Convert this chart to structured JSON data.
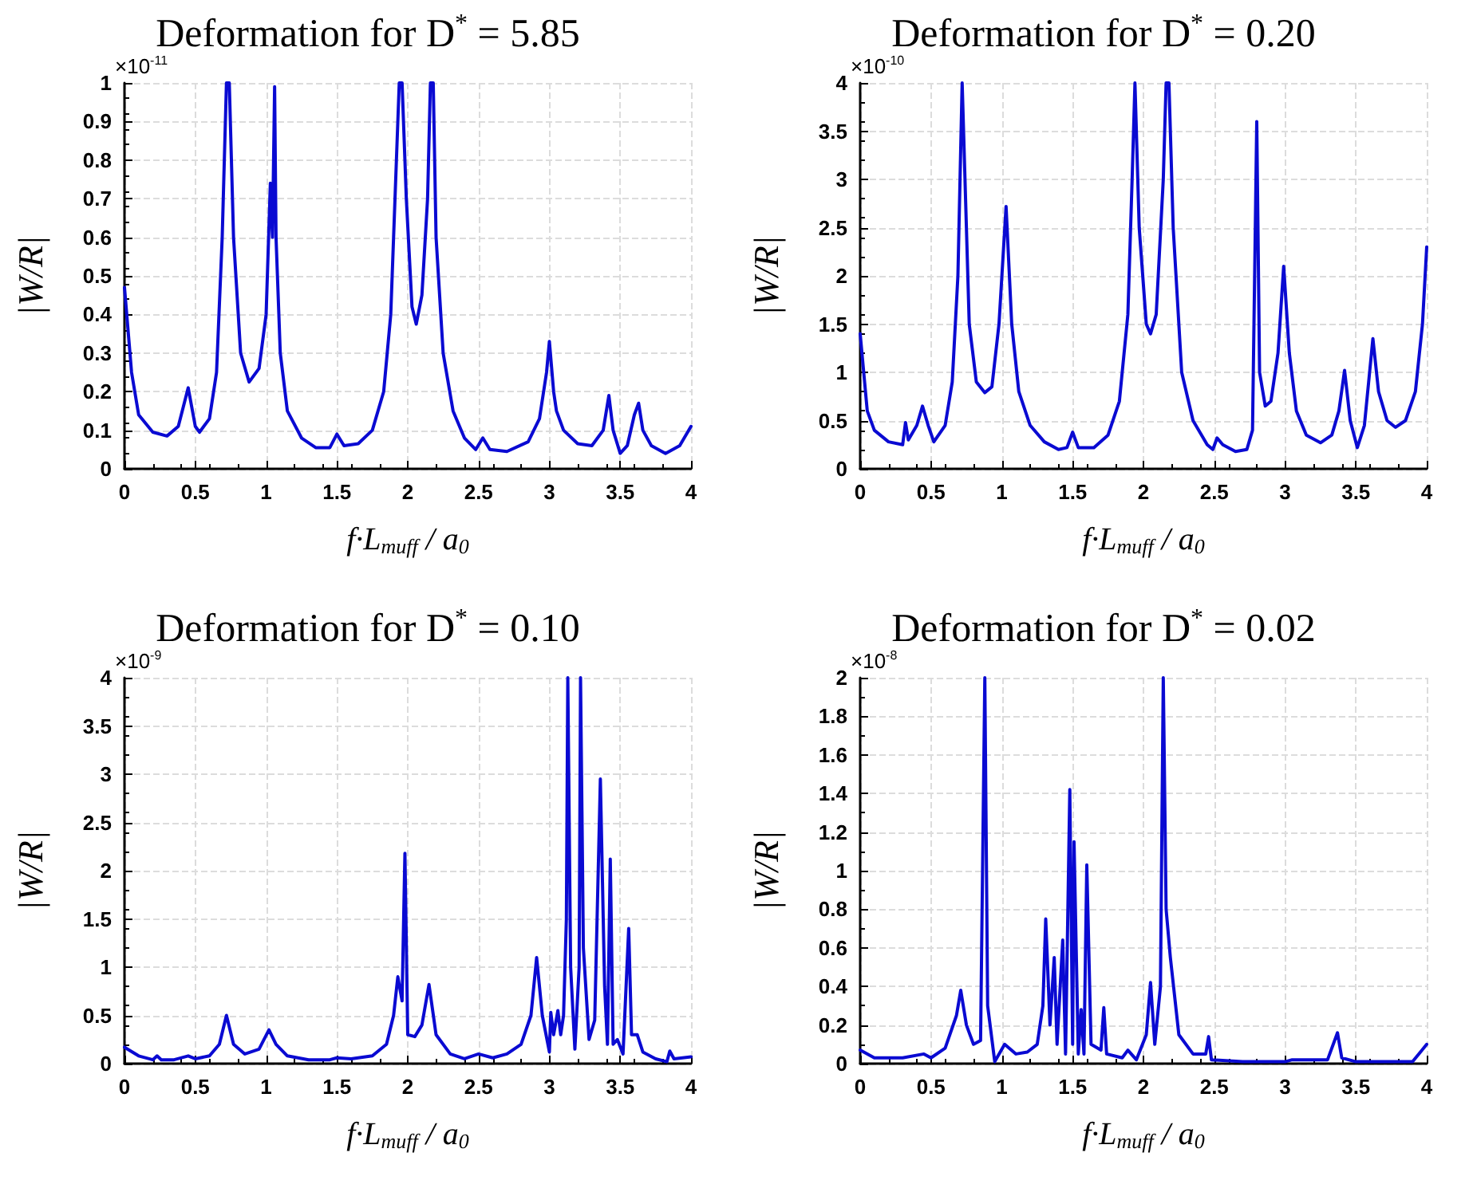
{
  "chart_data": [
    {
      "type": "line",
      "title": "Deformation for D$^{*}$ = 5.85",
      "xlabel": "f·L$_{muff}$ / a$_{0}$",
      "ylabel": "|W/R|",
      "annotations": [
        "×10$^{-11}$"
      ],
      "xlim": [
        0,
        4
      ],
      "xticks": [
        0,
        0.5,
        1,
        1.5,
        2,
        2.5,
        3,
        3.5,
        4
      ],
      "ylim": [
        0,
        1
      ],
      "yticks": [
        0,
        0.1,
        0.2,
        0.3,
        0.4,
        0.5,
        0.6,
        0.7,
        0.8,
        0.9,
        1
      ],
      "grid": true,
      "marker": "none",
      "line_style": "solid",
      "series": [
        {
          "color": "#0a0ad2",
          "x": [
            0,
            0.05,
            0.1,
            0.2,
            0.3,
            0.38,
            0.45,
            0.5,
            0.53,
            0.6,
            0.65,
            0.69,
            0.72,
            0.74,
            0.77,
            0.82,
            0.88,
            0.95,
            1.0,
            1.03,
            1.045,
            1.06,
            1.07,
            1.1,
            1.15,
            1.25,
            1.35,
            1.45,
            1.5,
            1.55,
            1.65,
            1.75,
            1.83,
            1.88,
            1.92,
            1.94,
            1.96,
            1.99,
            2.03,
            2.06,
            2.1,
            2.14,
            2.16,
            2.18,
            2.2,
            2.25,
            2.32,
            2.4,
            2.48,
            2.53,
            2.58,
            2.7,
            2.85,
            2.93,
            2.98,
            3.0,
            3.03,
            3.05,
            3.1,
            3.2,
            3.3,
            3.38,
            3.42,
            3.45,
            3.5,
            3.55,
            3.6,
            3.63,
            3.66,
            3.72,
            3.82,
            3.92,
            4
          ],
          "values": [
            0.47,
            0.25,
            0.14,
            0.095,
            0.085,
            0.11,
            0.21,
            0.11,
            0.095,
            0.13,
            0.25,
            0.6,
            1,
            1,
            0.6,
            0.3,
            0.225,
            0.26,
            0.4,
            0.74,
            0.6,
            0.99,
            0.6,
            0.3,
            0.15,
            0.08,
            0.055,
            0.055,
            0.09,
            0.06,
            0.065,
            0.1,
            0.2,
            0.4,
            0.8,
            1,
            1,
            0.7,
            0.42,
            0.375,
            0.45,
            0.7,
            1,
            1,
            0.6,
            0.3,
            0.15,
            0.08,
            0.05,
            0.08,
            0.05,
            0.045,
            0.07,
            0.13,
            0.25,
            0.33,
            0.2,
            0.15,
            0.1,
            0.065,
            0.06,
            0.1,
            0.19,
            0.1,
            0.04,
            0.06,
            0.14,
            0.17,
            0.1,
            0.06,
            0.04,
            0.06,
            0.11
          ]
        }
      ]
    },
    {
      "type": "line",
      "title": "Deformation for D$^{*}$ = 0.20",
      "xlabel": "f·L$_{muff}$ / a$_{0}$",
      "ylabel": "|W/R|",
      "annotations": [
        "×10$^{-10}$"
      ],
      "xlim": [
        0,
        4
      ],
      "xticks": [
        0,
        0.5,
        1,
        1.5,
        2,
        2.5,
        3,
        3.5,
        4
      ],
      "ylim": [
        0,
        4
      ],
      "yticks": [
        0,
        0.5,
        1,
        1.5,
        2,
        2.5,
        3,
        3.5,
        4
      ],
      "grid": true,
      "marker": "none",
      "line_style": "solid",
      "series": [
        {
          "color": "#0a0ad2",
          "x": [
            0,
            0.05,
            0.1,
            0.2,
            0.3,
            0.32,
            0.34,
            0.4,
            0.44,
            0.48,
            0.52,
            0.6,
            0.65,
            0.69,
            0.72,
            0.74,
            0.77,
            0.82,
            0.88,
            0.93,
            0.98,
            1.03,
            1.07,
            1.12,
            1.2,
            1.3,
            1.4,
            1.46,
            1.5,
            1.54,
            1.65,
            1.75,
            1.83,
            1.89,
            1.92,
            1.94,
            1.97,
            2.02,
            2.05,
            2.09,
            2.14,
            2.16,
            2.18,
            2.21,
            2.27,
            2.35,
            2.45,
            2.49,
            2.52,
            2.56,
            2.65,
            2.73,
            2.77,
            2.8,
            2.82,
            2.86,
            2.9,
            2.95,
            2.99,
            3.03,
            3.08,
            3.15,
            3.25,
            3.33,
            3.38,
            3.42,
            3.46,
            3.51,
            3.56,
            3.59,
            3.62,
            3.66,
            3.72,
            3.78,
            3.85,
            3.92,
            3.97,
            4
          ],
          "values": [
            1.4,
            0.6,
            0.4,
            0.28,
            0.25,
            0.48,
            0.3,
            0.45,
            0.65,
            0.45,
            0.28,
            0.45,
            0.9,
            2,
            4,
            3,
            1.5,
            0.9,
            0.79,
            0.85,
            1.5,
            2.72,
            1.5,
            0.8,
            0.45,
            0.28,
            0.2,
            0.22,
            0.38,
            0.22,
            0.22,
            0.35,
            0.7,
            1.6,
            3,
            4,
            2.5,
            1.5,
            1.4,
            1.6,
            3,
            4,
            4,
            2.5,
            1,
            0.5,
            0.25,
            0.2,
            0.32,
            0.25,
            0.18,
            0.2,
            0.4,
            3.6,
            1,
            0.65,
            0.7,
            1.2,
            2.1,
            1.2,
            0.6,
            0.35,
            0.27,
            0.35,
            0.6,
            1.02,
            0.5,
            0.22,
            0.45,
            0.9,
            1.35,
            0.8,
            0.5,
            0.43,
            0.5,
            0.8,
            1.5,
            2.3
          ]
        }
      ]
    },
    {
      "type": "line",
      "title": "Deformation for D$^{*}$ = 0.10",
      "xlabel": "f·L$_{muff}$ / a$_{0}$",
      "ylabel": "|W/R|",
      "annotations": [
        "×10$^{-9}$"
      ],
      "xlim": [
        0,
        4
      ],
      "xticks": [
        0,
        0.5,
        1,
        1.5,
        2,
        2.5,
        3,
        3.5,
        4
      ],
      "ylim": [
        0,
        4
      ],
      "yticks": [
        0,
        0.5,
        1,
        1.5,
        2,
        2.5,
        3,
        3.5,
        4
      ],
      "grid": true,
      "marker": "none",
      "line_style": "solid",
      "series": [
        {
          "color": "#0a0ad2",
          "x": [
            0,
            0.1,
            0.2,
            0.23,
            0.26,
            0.35,
            0.45,
            0.5,
            0.6,
            0.67,
            0.72,
            0.77,
            0.85,
            0.95,
            1.02,
            1.07,
            1.15,
            1.3,
            1.45,
            1.5,
            1.6,
            1.75,
            1.85,
            1.9,
            1.93,
            1.96,
            1.98,
            2.0,
            2.05,
            2.1,
            2.15,
            2.2,
            2.3,
            2.4,
            2.5,
            2.6,
            2.7,
            2.8,
            2.87,
            2.91,
            2.95,
            3.0,
            3.01,
            3.03,
            3.06,
            3.08,
            3.1,
            3.12,
            3.13,
            3.15,
            3.18,
            3.21,
            3.22,
            3.24,
            3.28,
            3.32,
            3.36,
            3.39,
            3.41,
            3.43,
            3.45,
            3.48,
            3.52,
            3.56,
            3.58,
            3.62,
            3.66,
            3.75,
            3.83,
            3.85,
            3.88,
            4
          ],
          "values": [
            0.17,
            0.08,
            0.04,
            0.08,
            0.04,
            0.04,
            0.08,
            0.05,
            0.08,
            0.2,
            0.5,
            0.2,
            0.1,
            0.15,
            0.35,
            0.2,
            0.08,
            0.04,
            0.04,
            0.06,
            0.05,
            0.08,
            0.2,
            0.5,
            0.9,
            0.65,
            2.18,
            0.3,
            0.28,
            0.4,
            0.82,
            0.3,
            0.1,
            0.05,
            0.1,
            0.06,
            0.1,
            0.2,
            0.5,
            1.1,
            0.5,
            0.12,
            0.53,
            0.3,
            0.55,
            0.3,
            0.5,
            1.5,
            4,
            1.0,
            0.15,
            1.0,
            4,
            1.2,
            0.25,
            0.45,
            2.95,
            0.8,
            0.2,
            2.12,
            0.2,
            0.25,
            0.1,
            1.4,
            0.3,
            0.3,
            0.12,
            0.05,
            0.02,
            0.13,
            0.05,
            0.07
          ]
        }
      ]
    },
    {
      "type": "line",
      "title": "Deformation for D$^{*}$ = 0.02",
      "xlabel": "f·L$_{muff}$ / a$_{0}$",
      "ylabel": "|W/R|",
      "annotations": [
        "×10$^{-8}$"
      ],
      "xlim": [
        0,
        4
      ],
      "xticks": [
        0,
        0.5,
        1,
        1.5,
        2,
        2.5,
        3,
        3.5,
        4
      ],
      "ylim": [
        0,
        2
      ],
      "yticks": [
        0,
        0.2,
        0.4,
        0.6,
        0.8,
        1,
        1.2,
        1.4,
        1.6,
        1.8,
        2
      ],
      "grid": true,
      "marker": "none",
      "line_style": "solid",
      "series": [
        {
          "color": "#0a0ad2",
          "x": [
            0,
            0.1,
            0.3,
            0.45,
            0.5,
            0.6,
            0.68,
            0.71,
            0.75,
            0.8,
            0.85,
            0.88,
            0.9,
            0.95,
            1.02,
            1.1,
            1.18,
            1.25,
            1.29,
            1.31,
            1.34,
            1.37,
            1.39,
            1.41,
            1.43,
            1.45,
            1.48,
            1.5,
            1.51,
            1.54,
            1.56,
            1.58,
            1.6,
            1.63,
            1.7,
            1.72,
            1.74,
            1.85,
            1.89,
            1.95,
            2.02,
            2.05,
            2.08,
            2.12,
            2.14,
            2.16,
            2.19,
            2.25,
            2.35,
            2.44,
            2.46,
            2.48,
            2.7,
            3.0,
            3.05,
            3.3,
            3.37,
            3.4,
            3.5,
            3.9,
            4
          ],
          "values": [
            0.07,
            0.03,
            0.03,
            0.05,
            0.03,
            0.08,
            0.25,
            0.38,
            0.2,
            0.1,
            0.12,
            2,
            0.3,
            0.01,
            0.1,
            0.05,
            0.06,
            0.1,
            0.3,
            0.75,
            0.2,
            0.55,
            0.1,
            0.37,
            0.64,
            0.05,
            1.42,
            0.1,
            1.15,
            0.05,
            0.28,
            0.05,
            1.03,
            0.1,
            0.07,
            0.29,
            0.05,
            0.03,
            0.07,
            0.02,
            0.15,
            0.42,
            0.1,
            0.4,
            2,
            0.8,
            0.55,
            0.15,
            0.05,
            0.05,
            0.14,
            0.02,
            0.01,
            0.01,
            0.02,
            0.02,
            0.16,
            0.03,
            0.01,
            0.01,
            0.1
          ]
        }
      ]
    }
  ]
}
